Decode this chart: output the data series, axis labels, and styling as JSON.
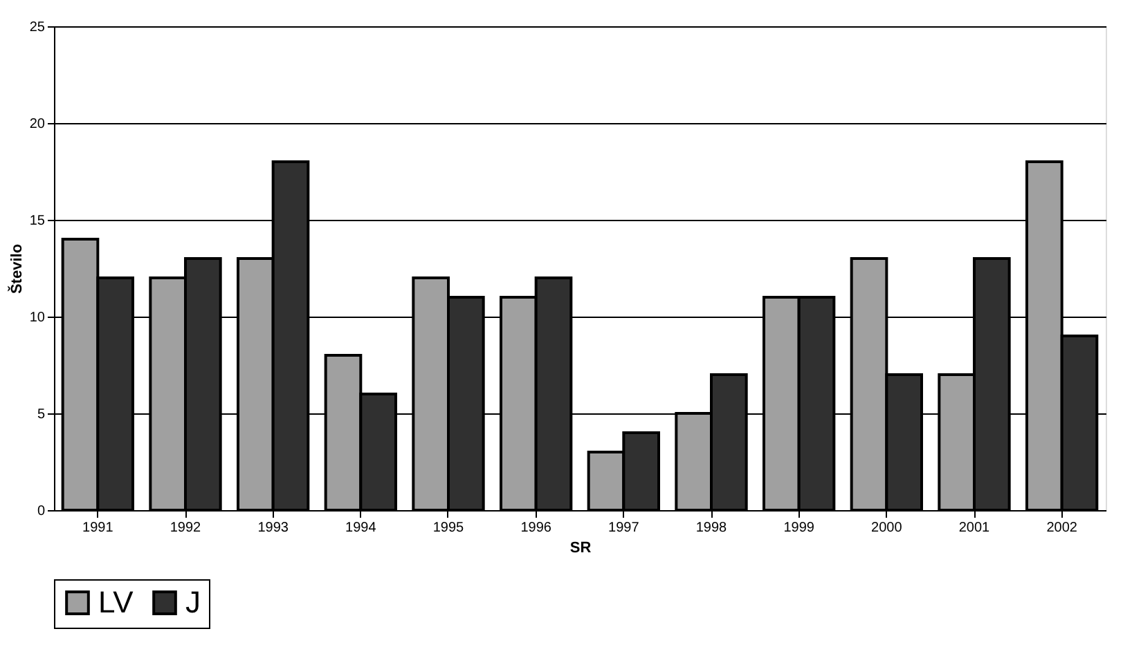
{
  "chart_data": {
    "type": "bar",
    "xlabel": "SR",
    "ylabel": "Število",
    "categories": [
      "1991",
      "1992",
      "1993",
      "1994",
      "1995",
      "1996",
      "1997",
      "1998",
      "1999",
      "2000",
      "2001",
      "2002"
    ],
    "series": [
      {
        "name": "LV",
        "color": "#a0a0a0",
        "values": [
          14,
          12,
          13,
          8,
          12,
          11,
          3,
          5,
          11,
          13,
          7,
          18
        ]
      },
      {
        "name": "J",
        "color": "#303030",
        "values": [
          12,
          13,
          18,
          6,
          11,
          12,
          4,
          7,
          11,
          7,
          13,
          9
        ]
      }
    ],
    "ylim": [
      0,
      25
    ],
    "yticks": [
      0,
      5,
      10,
      15,
      20,
      25
    ],
    "grid": "y",
    "legend": "bottom"
  }
}
